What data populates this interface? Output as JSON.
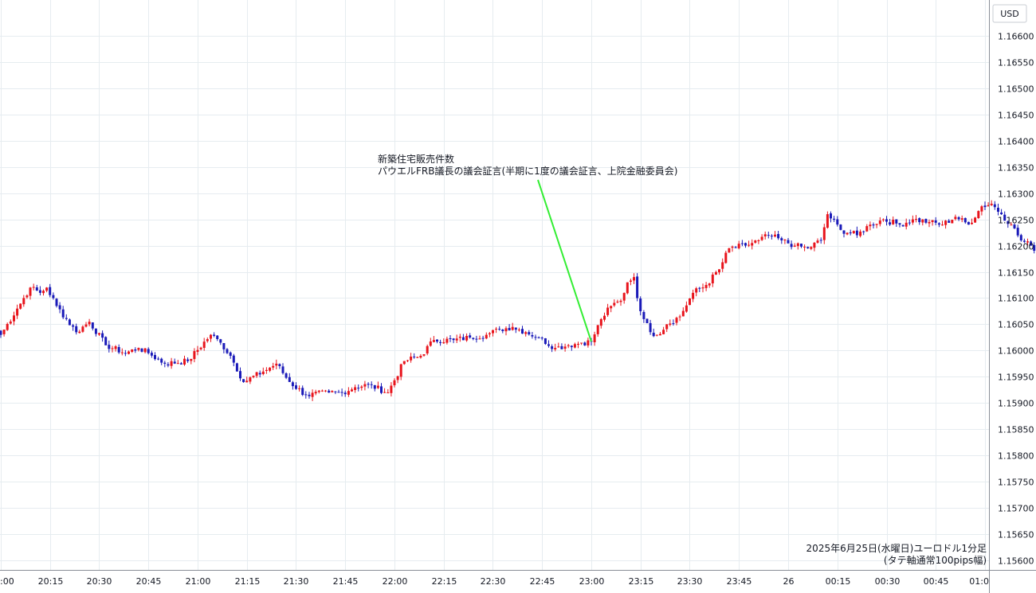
{
  "chart_data": {
    "type": "candlestick",
    "currency_label": "USD",
    "caption_line1": "2025年6月25日(水曜日)ユーロドル1分足",
    "caption_line2": "(タテ軸通常100pips幅)",
    "annotation": {
      "line1": "新築住宅販売件数",
      "line2": "パウエルFRB議長の議会証言(半期に1度の議会証言、上院金融委員会)",
      "target_time": "23:00",
      "target_price": 1.16017,
      "color": "#33ee33"
    },
    "ylim": [
      1.15575,
      1.16675
    ],
    "y_ticks": [
      "1.16600",
      "1.16550",
      "1.16500",
      "1.16450",
      "1.16400",
      "1.16350",
      "1.16300",
      "1.16250",
      "1.16200",
      "1.16150",
      "1.16100",
      "1.16050",
      "1.16000",
      "1.15950",
      "1.15900",
      "1.15850",
      "1.15800",
      "1.15750",
      "1.15700",
      "1.15650",
      "1.15600"
    ],
    "x_ticks": [
      ":00",
      "20:15",
      "20:30",
      "20:45",
      "21:00",
      "21:15",
      "21:30",
      "21:45",
      "22:00",
      "22:15",
      "22:30",
      "22:45",
      "23:00",
      "23:15",
      "23:30",
      "23:45",
      "26",
      "00:15",
      "00:30",
      "00:45",
      "01:0"
    ],
    "colors": {
      "up": "#e8141c",
      "down": "#1a1ab8",
      "grid": "#e6ecf0",
      "axis": "#8a8e97"
    },
    "key_points": [
      [
        0,
        1.1603
      ],
      [
        5,
        1.1608
      ],
      [
        9,
        1.1612
      ],
      [
        12,
        1.1611
      ],
      [
        14,
        1.1612
      ],
      [
        17,
        1.16085
      ],
      [
        23,
        1.16035
      ],
      [
        27,
        1.16055
      ],
      [
        32,
        1.1601
      ],
      [
        38,
        1.15995
      ],
      [
        42,
        1.16005
      ],
      [
        45,
        1.15995
      ],
      [
        50,
        1.15975
      ],
      [
        57,
        1.1598
      ],
      [
        64,
        1.1603
      ],
      [
        67,
        1.16015
      ],
      [
        70,
        1.1599
      ],
      [
        74,
        1.1594
      ],
      [
        80,
        1.1596
      ],
      [
        84,
        1.15975
      ],
      [
        88,
        1.1594
      ],
      [
        93,
        1.15915
      ],
      [
        100,
        1.1592
      ],
      [
        104,
        1.1592
      ],
      [
        108,
        1.1593
      ],
      [
        112,
        1.15935
      ],
      [
        118,
        1.1592
      ],
      [
        123,
        1.1598
      ],
      [
        128,
        1.1599
      ],
      [
        132,
        1.1602
      ],
      [
        138,
        1.1602
      ],
      [
        143,
        1.16025
      ],
      [
        148,
        1.1603
      ],
      [
        152,
        1.1604
      ],
      [
        156,
        1.16045
      ],
      [
        160,
        1.16035
      ],
      [
        164,
        1.16025
      ],
      [
        169,
        1.16005
      ],
      [
        173,
        1.1601
      ],
      [
        177,
        1.16015
      ],
      [
        180,
        1.16017
      ],
      [
        183,
        1.1606
      ],
      [
        186,
        1.16085
      ],
      [
        189,
        1.16095
      ],
      [
        191,
        1.1613
      ],
      [
        193,
        1.1614
      ],
      [
        194,
        1.161
      ],
      [
        196,
        1.1606
      ],
      [
        198,
        1.16035
      ],
      [
        200,
        1.1603
      ],
      [
        203,
        1.1605
      ],
      [
        207,
        1.16065
      ],
      [
        211,
        1.1611
      ],
      [
        215,
        1.16125
      ],
      [
        219,
        1.16155
      ],
      [
        222,
        1.16195
      ],
      [
        227,
        1.162
      ],
      [
        231,
        1.1621
      ],
      [
        234,
        1.1622
      ],
      [
        238,
        1.1621
      ],
      [
        242,
        1.162
      ],
      [
        246,
        1.16195
      ],
      [
        250,
        1.1621
      ],
      [
        252,
        1.1626
      ],
      [
        256,
        1.1623
      ],
      [
        261,
        1.1622
      ],
      [
        265,
        1.1624
      ],
      [
        269,
        1.1625
      ],
      [
        274,
        1.1624
      ],
      [
        278,
        1.1625
      ],
      [
        283,
        1.16245
      ],
      [
        287,
        1.1624
      ],
      [
        291,
        1.16255
      ],
      [
        295,
        1.1624
      ],
      [
        299,
        1.16275
      ],
      [
        302,
        1.1628
      ],
      [
        305,
        1.1626
      ],
      [
        308,
        1.1624
      ],
      [
        311,
        1.1621
      ],
      [
        314,
        1.162
      ],
      [
        317,
        1.16185
      ],
      [
        320,
        1.1618
      ],
      [
        322,
        1.1619
      ],
      [
        323,
        1.16255
      ]
    ]
  }
}
